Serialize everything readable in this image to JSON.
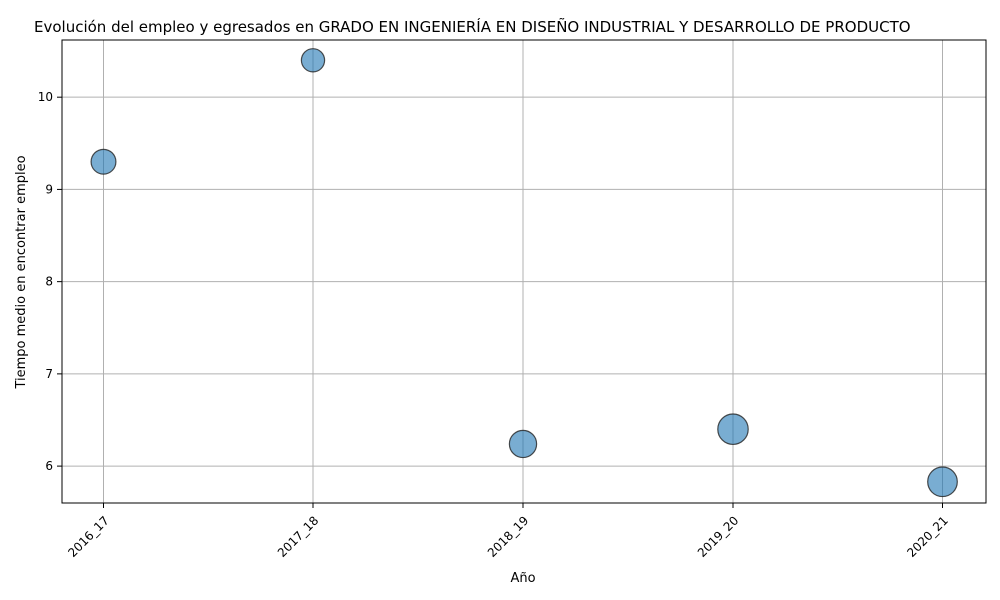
{
  "chart_data": {
    "type": "scatter",
    "title": "Evolución del empleo y egresados en GRADO EN INGENIERÍA EN DISEÑO INDUSTRIAL Y DESARROLLO DE PRODUCTO",
    "xlabel": "Año",
    "ylabel": "Tiempo medio en encontrar empleo",
    "categories": [
      "2016_17",
      "2017_18",
      "2018_19",
      "2019_20",
      "2020_21"
    ],
    "values": [
      9.3,
      10.4,
      6.24,
      6.4,
      5.83
    ],
    "bubble_size_relative": [
      0.55,
      0.45,
      0.7,
      0.9,
      0.85
    ],
    "ylim": [
      5.6,
      10.62
    ],
    "yticks": [
      6,
      7,
      8,
      9,
      10
    ],
    "grid": true,
    "color": "#1f77b4"
  }
}
